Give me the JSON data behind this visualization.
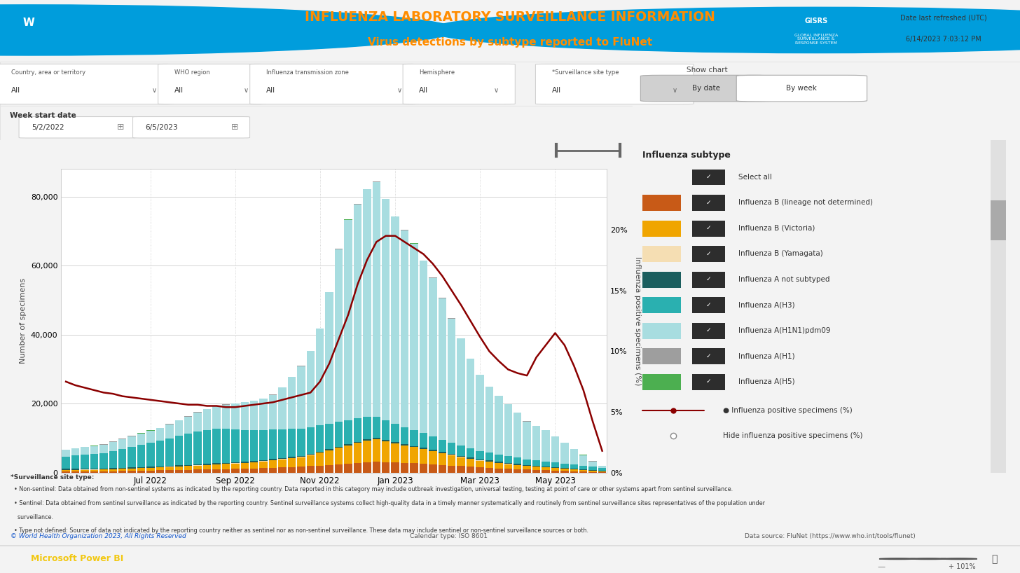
{
  "title_main": "INFLUENZA LABORATORY SURVEILLANCE INFORMATION",
  "title_sub": "Virus detections by subtype reported to FluNet",
  "ylabel_left": "Number of specimens",
  "ylabel_right": "Influenza positive specimens (%)",
  "date_refresh_line1": "Date last refreshed (UTC)",
  "date_refresh_line2": "6/14/2023 7:03:12 PM",
  "bg_color": "#f3f3f3",
  "panel_bg": "#ffffff",
  "chart_bg": "#ffffff",
  "legend_colors": [
    "#2d2d2d",
    "#c85a17",
    "#f0a500",
    "#f5deb3",
    "#1b5e5e",
    "#2ab0b0",
    "#a8dde0",
    "#9e9e9e",
    "#4caf50"
  ],
  "legend_labels": [
    "Select all",
    "Influenza B (lineage not determined)",
    "Influenza B (Victoria)",
    "Influenza B (Yamagata)",
    "Influenza A not subtyped",
    "Influenza A(H3)",
    "Influenza A(H1N1)pdm09",
    "Influenza A(H1)",
    "Influenza A(H5)"
  ],
  "bar_colors": [
    "#c85a17",
    "#f0a500",
    "#f5deb3",
    "#1b5e5e",
    "#2ab0b0",
    "#a8dde0",
    "#9e9e9e",
    "#4caf50"
  ],
  "line_color": "#8B0000",
  "n_weeks": 58,
  "xtick_pos": [
    9,
    18,
    27,
    35,
    44,
    52
  ],
  "xtick_labels": [
    "Jul 2022",
    "Sep 2022",
    "Nov 2022",
    "Jan 2023",
    "Mar 2023",
    "May 2023"
  ],
  "yticks_left": [
    0,
    20000,
    40000,
    60000,
    80000
  ],
  "ytick_labels_left": [
    "0",
    "20,000",
    "40,000",
    "60,000",
    "80,000"
  ],
  "yticks_right": [
    0.0,
    0.05,
    0.1,
    0.15,
    0.2
  ],
  "ytick_labels_right": [
    "0%",
    "5%",
    "10%",
    "15%",
    "20%"
  ],
  "filter_labels": [
    "Country, area or territory",
    "WHO region",
    "Influenza transmission zone",
    "Hemisphere",
    "*Surveillance site type"
  ],
  "filter_values": [
    "All",
    "All",
    "All",
    "All",
    "All"
  ],
  "week_start": "5/2/2022",
  "week_end": "6/5/2023",
  "footer_copyright": "© World Health Organization 2023, All Rights Reserved",
  "footer_calendar": "Calendar type: ISO 8601",
  "footer_datasource": "Data source: FluNet (https://www.who.int/tools/flunet)",
  "powerbi_text": "Microsoft Power BI",
  "B_lineage": [
    300,
    300,
    350,
    350,
    400,
    450,
    500,
    550,
    600,
    650,
    700,
    750,
    800,
    850,
    900,
    950,
    1000,
    1050,
    1100,
    1150,
    1200,
    1300,
    1400,
    1500,
    1600,
    1700,
    1900,
    2100,
    2300,
    2500,
    2700,
    2900,
    3100,
    3200,
    3100,
    3000,
    2900,
    2800,
    2700,
    2500,
    2300,
    2100,
    1900,
    1700,
    1500,
    1400,
    1200,
    1100,
    1000,
    900,
    800,
    700,
    600,
    500,
    400,
    300,
    200,
    100
  ],
  "B_victoria": [
    500,
    500,
    500,
    500,
    500,
    550,
    600,
    650,
    700,
    750,
    800,
    900,
    1000,
    1100,
    1200,
    1300,
    1400,
    1500,
    1600,
    1700,
    1800,
    2000,
    2200,
    2400,
    2600,
    2800,
    3200,
    3700,
    4200,
    4700,
    5200,
    5700,
    6200,
    6500,
    6000,
    5500,
    5000,
    4600,
    4200,
    3800,
    3400,
    3000,
    2600,
    2300,
    2000,
    1800,
    1600,
    1400,
    1200,
    1000,
    900,
    800,
    700,
    600,
    500,
    400,
    300,
    200
  ],
  "B_yamagata": [
    50,
    50,
    50,
    50,
    50,
    50,
    50,
    50,
    50,
    50,
    50,
    50,
    50,
    50,
    50,
    50,
    50,
    50,
    50,
    50,
    50,
    50,
    50,
    50,
    50,
    50,
    50,
    50,
    50,
    50,
    50,
    50,
    50,
    50,
    50,
    50,
    50,
    50,
    50,
    50,
    50,
    50,
    50,
    50,
    50,
    50,
    50,
    50,
    50,
    50,
    50,
    50,
    50,
    50,
    50,
    50,
    50,
    50
  ],
  "A_not_subtyped": [
    300,
    300,
    300,
    300,
    300,
    300,
    300,
    300,
    300,
    300,
    300,
    300,
    300,
    300,
    300,
    300,
    300,
    300,
    300,
    300,
    300,
    300,
    300,
    300,
    300,
    300,
    300,
    300,
    300,
    300,
    300,
    300,
    300,
    300,
    300,
    300,
    300,
    300,
    300,
    300,
    300,
    300,
    300,
    300,
    300,
    300,
    300,
    300,
    300,
    300,
    300,
    300,
    300,
    300,
    300,
    300,
    300,
    300
  ],
  "A_H3": [
    3500,
    3800,
    4000,
    4200,
    4500,
    5000,
    5500,
    6000,
    6500,
    7000,
    7500,
    8000,
    8500,
    9000,
    9500,
    9800,
    10000,
    9800,
    9500,
    9200,
    9000,
    8800,
    8600,
    8400,
    8200,
    8000,
    7800,
    7600,
    7400,
    7200,
    7000,
    6800,
    6500,
    6200,
    5800,
    5400,
    5000,
    4600,
    4200,
    3800,
    3500,
    3200,
    3000,
    2700,
    2500,
    2300,
    2100,
    2000,
    1800,
    1600,
    1500,
    1400,
    1300,
    1200,
    1100,
    1000,
    900,
    800
  ],
  "A_H1N1": [
    2000,
    2100,
    2200,
    2300,
    2400,
    2600,
    2800,
    3000,
    3200,
    3400,
    3600,
    4000,
    4500,
    5000,
    5500,
    6000,
    6500,
    7000,
    7500,
    8000,
    8500,
    9000,
    10000,
    12000,
    15000,
    18000,
    22000,
    28000,
    38000,
    50000,
    58000,
    62000,
    66000,
    68000,
    64000,
    60000,
    57000,
    54000,
    50000,
    46000,
    41000,
    36000,
    31000,
    26000,
    22000,
    19000,
    17000,
    15000,
    13000,
    11000,
    10000,
    9000,
    7500,
    6000,
    4500,
    3000,
    1500,
    500
  ],
  "A_H1": [
    80,
    80,
    80,
    80,
    80,
    80,
    80,
    80,
    80,
    80,
    80,
    80,
    80,
    80,
    80,
    80,
    80,
    80,
    80,
    80,
    80,
    80,
    80,
    80,
    80,
    80,
    80,
    80,
    80,
    80,
    80,
    80,
    80,
    80,
    80,
    80,
    80,
    80,
    80,
    80,
    80,
    80,
    80,
    80,
    80,
    80,
    80,
    80,
    80,
    80,
    80,
    80,
    80,
    80,
    80,
    80,
    80,
    80
  ],
  "A_H5": [
    20,
    20,
    20,
    20,
    20,
    20,
    20,
    20,
    20,
    20,
    20,
    20,
    20,
    20,
    20,
    20,
    20,
    20,
    20,
    20,
    20,
    20,
    20,
    20,
    20,
    20,
    20,
    20,
    20,
    20,
    20,
    20,
    20,
    20,
    20,
    20,
    20,
    20,
    20,
    20,
    20,
    20,
    20,
    20,
    20,
    20,
    20,
    20,
    20,
    20,
    20,
    20,
    20,
    20,
    20,
    20,
    20,
    20
  ],
  "pct_positive": [
    0.075,
    0.072,
    0.07,
    0.068,
    0.066,
    0.065,
    0.063,
    0.062,
    0.061,
    0.06,
    0.059,
    0.058,
    0.057,
    0.056,
    0.056,
    0.055,
    0.055,
    0.054,
    0.054,
    0.055,
    0.056,
    0.057,
    0.058,
    0.06,
    0.062,
    0.064,
    0.066,
    0.075,
    0.09,
    0.11,
    0.13,
    0.155,
    0.175,
    0.19,
    0.195,
    0.195,
    0.19,
    0.185,
    0.18,
    0.172,
    0.162,
    0.15,
    0.138,
    0.125,
    0.112,
    0.1,
    0.092,
    0.085,
    0.082,
    0.08,
    0.095,
    0.105,
    0.115,
    0.105,
    0.088,
    0.068,
    0.042,
    0.018
  ]
}
